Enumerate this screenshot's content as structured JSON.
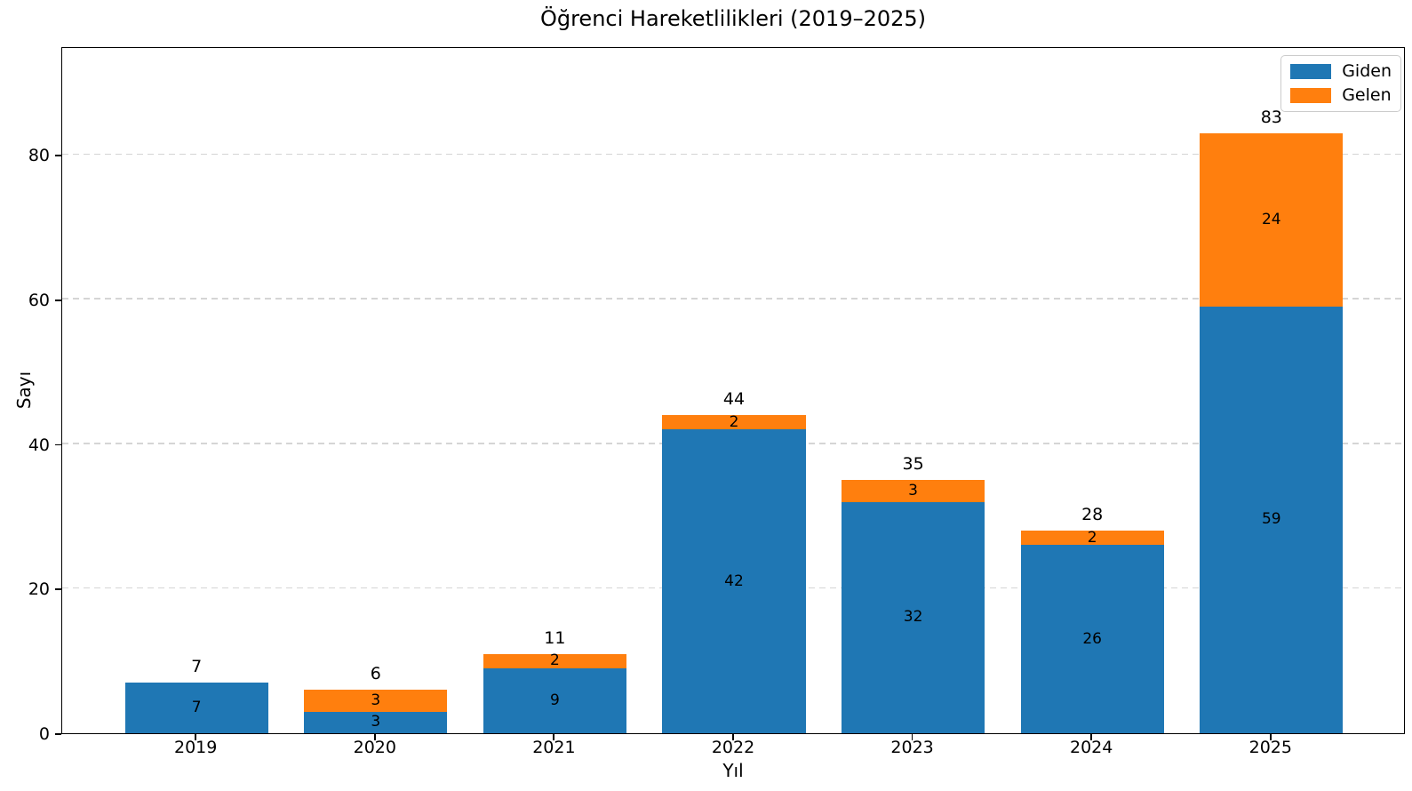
{
  "chart_data": {
    "type": "bar",
    "stacked": true,
    "title": "Öğrenci Hareketlilikleri (2019–2025)",
    "xlabel": "Yıl",
    "ylabel": "Sayı",
    "categories": [
      "2019",
      "2020",
      "2021",
      "2022",
      "2023",
      "2024",
      "2025"
    ],
    "series": [
      {
        "name": "Giden",
        "color": "#1f77b4",
        "values": [
          7,
          3,
          9,
          42,
          32,
          26,
          59
        ]
      },
      {
        "name": "Gelen",
        "color": "#ff7f0e",
        "values": [
          0,
          3,
          2,
          2,
          3,
          2,
          24
        ]
      }
    ],
    "totals": [
      7,
      6,
      11,
      44,
      35,
      28,
      83
    ],
    "yticks": [
      0,
      20,
      40,
      60,
      80
    ],
    "ylim": [
      0,
      95
    ],
    "bar_value_labels": true,
    "grid": {
      "axis": "y",
      "style": "dashed",
      "color": "#d5d5d5"
    },
    "legend": {
      "position": "upper-right"
    }
  }
}
